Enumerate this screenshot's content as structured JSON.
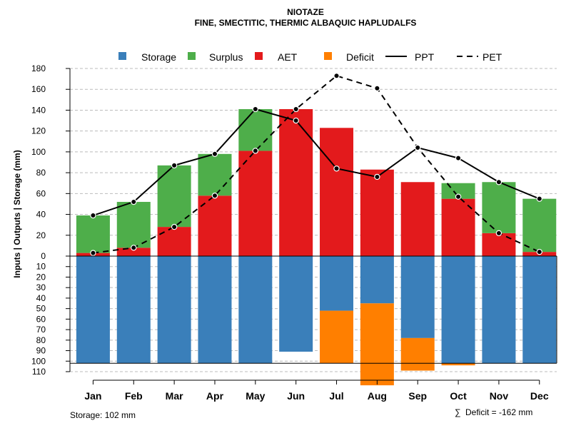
{
  "chart_data": {
    "type": "bar",
    "title": "NIOTAZE",
    "subtitle": "FINE, SMECTITIC, THERMIC ALBAQUIC HAPLUDALFS",
    "ylabel": "Inputs | Outputs | Storage    (mm)",
    "categories": [
      "Jan",
      "Feb",
      "Mar",
      "Apr",
      "May",
      "Jun",
      "Jul",
      "Aug",
      "Sep",
      "Oct",
      "Nov",
      "Dec"
    ],
    "upper_ticks": [
      "0",
      "20",
      "40",
      "60",
      "80",
      "100",
      "120",
      "140",
      "160",
      "180"
    ],
    "lower_ticks": [
      "10",
      "20",
      "30",
      "40",
      "50",
      "60",
      "70",
      "80",
      "90",
      "100",
      "110"
    ],
    "ylim_upper": [
      0,
      180
    ],
    "ylim_lower": [
      0,
      110
    ],
    "legend": {
      "storage": "Storage",
      "surplus": "Surplus",
      "aet": "AET",
      "deficit": "Deficit",
      "ppt": "PPT",
      "pet": "PET"
    },
    "colors": {
      "storage": "#3a7fba",
      "surplus": "#4eae4a",
      "aet": "#e31a1c",
      "deficit": "#ff7f00",
      "grid": "#bbbbbb"
    },
    "series": {
      "aet": [
        3,
        8,
        28,
        58,
        101,
        141,
        123,
        83,
        71,
        55,
        22,
        4
      ],
      "surplus": [
        36,
        44,
        59,
        40,
        40,
        0,
        0,
        0,
        0,
        15,
        49,
        51
      ],
      "ppt": [
        39,
        52,
        87,
        98,
        141,
        130,
        84,
        76,
        104,
        94,
        71,
        55
      ],
      "pet": [
        3,
        8,
        28,
        58,
        101,
        141,
        173,
        161,
        104,
        57,
        22,
        4
      ],
      "storage": [
        102,
        102,
        102,
        102,
        102,
        91,
        52,
        45,
        78,
        102,
        102,
        102
      ],
      "deficit": [
        0,
        0,
        0,
        0,
        0,
        0,
        50,
        78,
        31,
        2,
        0,
        0
      ]
    },
    "awc": 102
  },
  "footer": {
    "storage_text": "Storage: 102 mm",
    "deficit_text": "Deficit = -162 mm",
    "sigma": "∑"
  }
}
